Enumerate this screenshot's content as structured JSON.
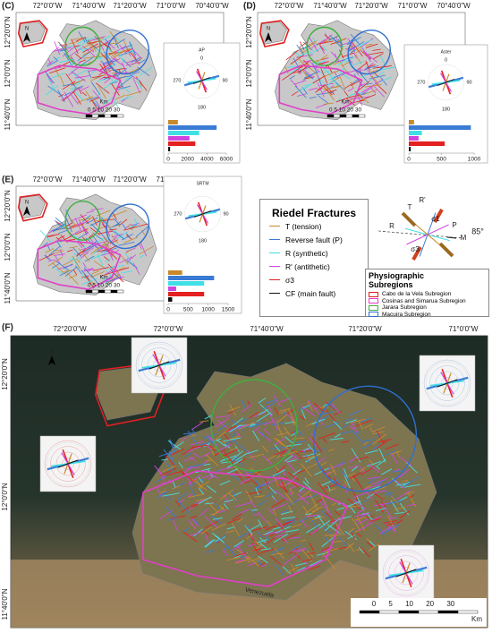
{
  "panels": [
    {
      "label": "(C)",
      "lon_labels": [
        "72°0'0\"W",
        "71°40'0\"W",
        "71°20'0\"W",
        "71°0'0\"W",
        "70°40'0\"W"
      ],
      "lat_labels": [
        "12°20'0\"N",
        "12°0'0\"N",
        "11°40'0\"N"
      ],
      "north": "N",
      "source": "AP",
      "rose_labels": {
        "top": "0",
        "right": "90",
        "bottom": "180",
        "left": "270"
      },
      "bar_values": [
        1000,
        5000,
        3200,
        2200,
        2800,
        200
      ],
      "bar_xlim": [
        0,
        6000
      ],
      "bar_ticks": [
        0,
        2000,
        4000,
        6000
      ],
      "scale_label": "0 5 10 20 30",
      "scale_unit": "Km"
    },
    {
      "label": "(D)",
      "lon_labels": [
        "72°0'0\"W",
        "71°40'0\"W",
        "71°20'0\"W",
        "71°0'0\"W",
        "70°40'0\"W"
      ],
      "lat_labels": [
        "12°20'0\"N",
        "12°0'0\"N",
        "11°40'0\"N"
      ],
      "north": "N",
      "source": "Aster",
      "rose_labels": {
        "top": "0",
        "right": "90",
        "bottom": "180",
        "left": "270"
      },
      "bar_values": [
        80,
        950,
        200,
        150,
        550,
        30
      ],
      "bar_xlim": [
        0,
        1000
      ],
      "bar_ticks": [
        0,
        500,
        1000
      ],
      "scale_label": "0 5 10 20 30",
      "scale_unit": "Km"
    },
    {
      "label": "(E)",
      "lon_labels": [
        "72°0'0\"W",
        "71°40'0\"W",
        "71°20'0\"W",
        "71°0'0\"W",
        "70°40'0\"W"
      ],
      "lat_labels": [
        "12°20'0\"N",
        "12°0'0\"N",
        "11°40'0\"N"
      ],
      "north": "N",
      "source": "SRTM",
      "rose_labels": {
        "right": "90",
        "bottom": "180",
        "left": "270"
      },
      "bar_values": [
        350,
        1150,
        900,
        200,
        900,
        100
      ],
      "bar_xlim": [
        0,
        1500
      ],
      "bar_ticks": [
        0,
        500,
        1000,
        1500
      ],
      "scale_label": "0 5 10 20 30",
      "scale_unit": "Km"
    }
  ],
  "legend": {
    "title": "Riedel Fractures",
    "items": [
      {
        "label": "T (tension)",
        "color": "#c8892a"
      },
      {
        "label": "Reverse fault (P)",
        "color": "#3a7bd5"
      },
      {
        "label": "R (synthetic)",
        "color": "#40dfe6"
      },
      {
        "label": "R' (antithetic)",
        "color": "#cf45de"
      },
      {
        "label": "σ3",
        "color": "#e42020"
      },
      {
        "label": "CF (main fault)",
        "color": "#111111"
      }
    ]
  },
  "subregions": {
    "title": "Physiographic Subregions",
    "items": [
      {
        "label": "Cabo de la Vela Subregion",
        "color": "#e02020"
      },
      {
        "label": "Cosinas and Simarua Subregion",
        "color": "#e040c8"
      },
      {
        "label": "Jarara Subregion",
        "color": "#40b040"
      },
      {
        "label": "Macuira Subregion",
        "color": "#3070d0"
      }
    ]
  },
  "diagram": {
    "labels": [
      "T",
      "R'",
      "P",
      "R",
      "M",
      "85°",
      "σ1",
      "σ3"
    ]
  },
  "panel_f": {
    "label": "(F)",
    "north": "N",
    "lon_labels": [
      "72°20'0\"W",
      "72°0'0\"W",
      "71°40'0\"W",
      "71°20'0\"W",
      "71°0'0\"W"
    ],
    "lat_labels": [
      "12°20'0\"N",
      "12°0'0\"N",
      "11°40'0\"N"
    ],
    "country": "Venezuela",
    "scale_label": "0 5 10 20 30",
    "scale_unit": "Km"
  }
}
